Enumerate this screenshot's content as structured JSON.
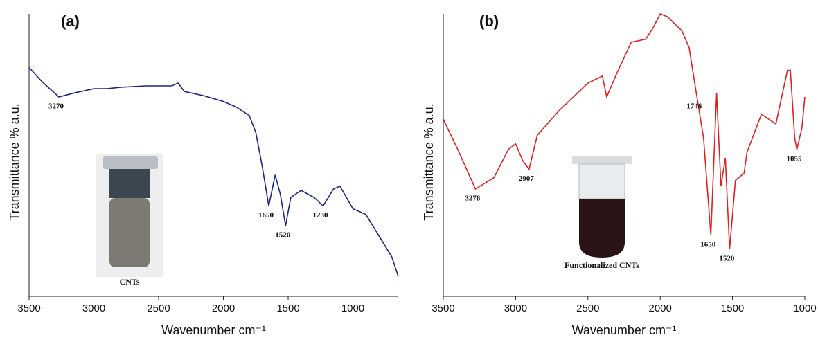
{
  "chart_data": [
    {
      "type": "line",
      "panel_label": "(a)",
      "y_label": "Transmittance % a.u.",
      "x_label": "Wavenumber cm⁻¹",
      "inset_caption": "CNTs",
      "color": "#1c2580",
      "xlim": [
        3500,
        650
      ],
      "xticks": [
        3500,
        3000,
        2500,
        2000,
        1500,
        1000
      ],
      "ylim": [
        0,
        100
      ],
      "x": [
        3500,
        3400,
        3270,
        3150,
        3000,
        2900,
        2800,
        2600,
        2400,
        2350,
        2300,
        2150,
        2000,
        1900,
        1800,
        1750,
        1700,
        1650,
        1600,
        1560,
        1520,
        1480,
        1400,
        1300,
        1230,
        1150,
        1100,
        1000,
        900,
        800,
        700,
        650
      ],
      "values": [
        81,
        76,
        70.6,
        72,
        73.5,
        73.5,
        74,
        74.5,
        74.5,
        75.5,
        72.5,
        71,
        69,
        67,
        64,
        58,
        46,
        32,
        43,
        36,
        25,
        35,
        37.5,
        35,
        32,
        38,
        39,
        31,
        29,
        21.5,
        14,
        7
      ],
      "annotations": [
        "3270",
        "1650",
        "1520",
        "1230"
      ]
    },
    {
      "type": "line",
      "panel_label": "(b)",
      "y_label": "Transmittance % a.u.",
      "x_label": "Wavenumber cm⁻¹",
      "inset_caption": "Functionalized  CNTs",
      "color": "#e02020",
      "xlim": [
        3500,
        1000
      ],
      "xticks": [
        3500,
        3000,
        2500,
        2000,
        1500,
        1000
      ],
      "ylim": [
        0,
        100
      ],
      "x": [
        3500,
        3400,
        3278,
        3150,
        3050,
        3000,
        2950,
        2907,
        2850,
        2700,
        2500,
        2400,
        2370,
        2300,
        2200,
        2100,
        2050,
        2000,
        1950,
        1850,
        1800,
        1746,
        1700,
        1650,
        1610,
        1580,
        1550,
        1520,
        1480,
        1420,
        1400,
        1300,
        1200,
        1120,
        1100,
        1070,
        1055,
        1020,
        1000
      ],
      "values": [
        62.7,
        52,
        38,
        42,
        52,
        54,
        48,
        45,
        57,
        65.7,
        75.5,
        78,
        70.6,
        79,
        90,
        91,
        95,
        100,
        99,
        94,
        88,
        70.6,
        56,
        21.6,
        72,
        39,
        49,
        16.7,
        41,
        43.6,
        51,
        64.5,
        61,
        80,
        80,
        56,
        52,
        59.6,
        70.6
      ],
      "annotations": [
        "3278",
        "2907",
        "1746",
        "1650",
        "1520",
        "1055"
      ]
    }
  ]
}
